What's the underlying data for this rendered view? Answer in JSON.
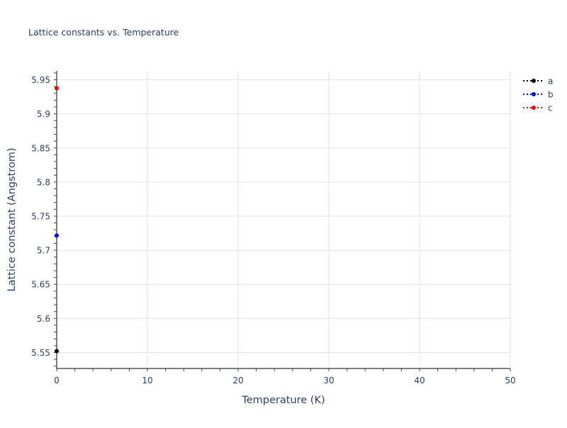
{
  "chart_data": {
    "type": "scatter",
    "title": "Lattice constants vs. Temperature",
    "xlabel": "Temperature (K)",
    "ylabel": "Lattice constant (Angstrom)",
    "xlim": [
      0,
      50
    ],
    "ylim": [
      5.5266,
      5.963
    ],
    "x_ticks": [
      0,
      10,
      20,
      30,
      40,
      50
    ],
    "y_ticks": [
      5.55,
      5.6,
      5.65,
      5.7,
      5.75,
      5.8,
      5.85,
      5.9,
      5.95
    ],
    "y_tick_labels": [
      "5.55",
      "5.6",
      "5.65",
      "5.7",
      "5.75",
      "5.8",
      "5.85",
      "5.9",
      "5.95"
    ],
    "grid": true,
    "legend_position": "top-right",
    "series": [
      {
        "name": "a",
        "color": "#000000",
        "line": "dotted",
        "x": [
          0
        ],
        "y": [
          5.552
        ]
      },
      {
        "name": "b",
        "color": "#0000ff",
        "line": "dotted",
        "x": [
          0
        ],
        "y": [
          5.7215
        ]
      },
      {
        "name": "c",
        "color": "#ff0000",
        "line": "dotted",
        "x": [
          0
        ],
        "y": [
          5.9375
        ]
      }
    ]
  }
}
